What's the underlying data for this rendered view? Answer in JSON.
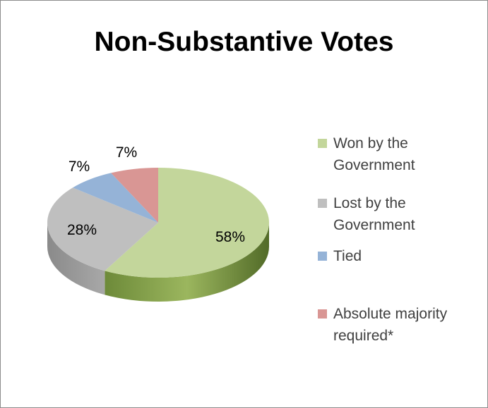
{
  "chart_data": {
    "type": "pie",
    "title": "Non-Substantive Votes",
    "categories": [
      "Won by the Government",
      "Lost by the Government",
      "Tied",
      "Absolute majority required*"
    ],
    "values": [
      58,
      28,
      7,
      7
    ],
    "data_labels": [
      "58%",
      "28%",
      "7%",
      "7%"
    ],
    "colors": [
      "#c3d69b",
      "#bfbfbf",
      "#95b3d7",
      "#d99694"
    ],
    "side_colors": [
      "#76923c",
      "#7f7f7f",
      "#4f81bd",
      "#c0504d"
    ],
    "style": "3d",
    "legend_position": "right"
  },
  "legend": {
    "lines": [
      [
        "Won by the",
        "Government"
      ],
      [
        "Lost by the",
        "Government"
      ],
      [
        "Tied"
      ],
      [
        "Absolute majority",
        "required*"
      ]
    ]
  }
}
